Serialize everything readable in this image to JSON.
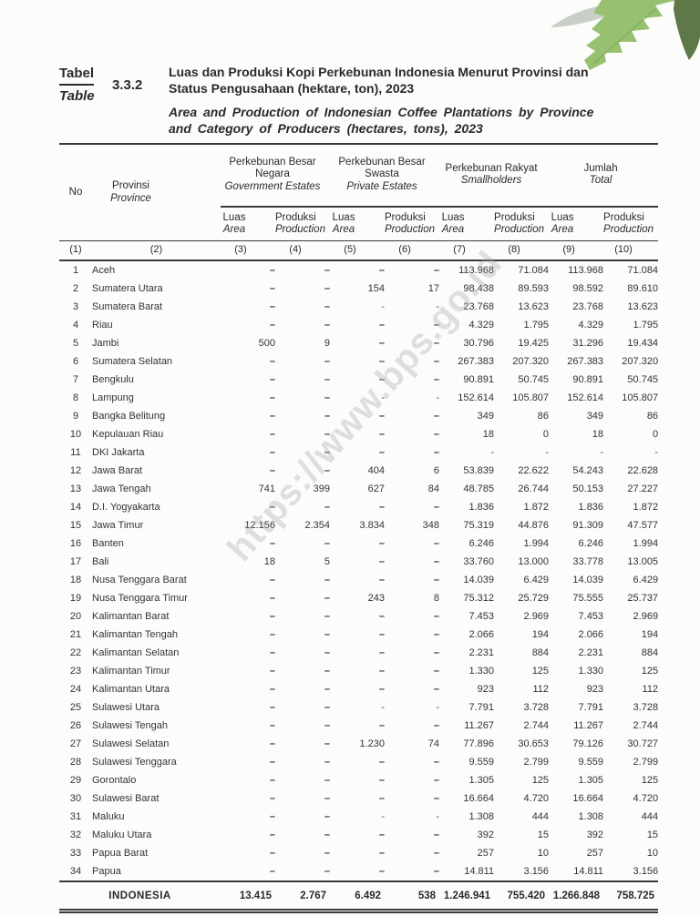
{
  "page": {
    "watermark_text": "https://www.bps.go.id"
  },
  "title_block": {
    "label_id": "Tabel",
    "label_en": "Table",
    "table_number": "3.3.2",
    "title_id_line1": "Luas dan Produksi Kopi Perkebunan Indonesia Menurut Provinsi dan",
    "title_id_line2": "Status Pengusahaan (hektare, ton), 2023",
    "title_en_line1": "Area and Production of Indonesian Coffee Plantations by Province",
    "title_en_line2": "and Category of Producers (hectares, tons), 2023"
  },
  "table": {
    "headers": {
      "no": "No",
      "province_id": "Provinsi",
      "province_en": "Province",
      "groups": [
        {
          "name_id": "Perkebunan Besar Negara",
          "name_en": "Government Estates"
        },
        {
          "name_id": "Perkebunan Besar Swasta",
          "name_en": "Private Estates"
        },
        {
          "name_id": "Perkebunan Rakyat",
          "name_en": "Smallholders"
        },
        {
          "name_id": "Jumlah",
          "name_en": "Total"
        }
      ],
      "sub_luas_id": "Luas",
      "sub_luas_en": "Area",
      "sub_prod_id": "Produksi",
      "sub_prod_en": "Production",
      "column_numbers": [
        "(1)",
        "(2)",
        "(3)",
        "(4)",
        "(5)",
        "(6)",
        "(7)",
        "(8)",
        "(9)",
        "(10)"
      ]
    },
    "rows": [
      {
        "no": "1",
        "province": "Aceh",
        "values": [
          "–",
          "–",
          "–",
          "–",
          "113.968",
          "71.084",
          "113.968",
          "71.084"
        ]
      },
      {
        "no": "2",
        "province": "Sumatera Utara",
        "values": [
          "–",
          "–",
          "154",
          "17",
          "98.438",
          "89.593",
          "98.592",
          "89.610"
        ]
      },
      {
        "no": "3",
        "province": "Sumatera Barat",
        "values": [
          "–",
          "–",
          "-",
          "-",
          "23.768",
          "13.623",
          "23.768",
          "13.623"
        ]
      },
      {
        "no": "4",
        "province": "Riau",
        "values": [
          "–",
          "–",
          "–",
          "–",
          "4.329",
          "1.795",
          "4.329",
          "1.795"
        ]
      },
      {
        "no": "5",
        "province": "Jambi",
        "values": [
          "500",
          "9",
          "–",
          "–",
          "30.796",
          "19.425",
          "31.296",
          "19.434"
        ]
      },
      {
        "no": "6",
        "province": "Sumatera Selatan",
        "values": [
          "–",
          "–",
          "–",
          "–",
          "267.383",
          "207.320",
          "267.383",
          "207.320"
        ]
      },
      {
        "no": "7",
        "province": "Bengkulu",
        "values": [
          "–",
          "–",
          "–",
          "–",
          "90.891",
          "50.745",
          "90.891",
          "50.745"
        ]
      },
      {
        "no": "8",
        "province": "Lampung",
        "values": [
          "–",
          "–",
          "-",
          "-",
          "152.614",
          "105.807",
          "152.614",
          "105.807"
        ]
      },
      {
        "no": "9",
        "province": "Bangka Belitung",
        "values": [
          "–",
          "–",
          "–",
          "–",
          "349",
          "86",
          "349",
          "86"
        ]
      },
      {
        "no": "10",
        "province": "Kepulauan Riau",
        "values": [
          "–",
          "–",
          "–",
          "–",
          "18",
          "0",
          "18",
          "0"
        ]
      },
      {
        "no": "11",
        "province": "DKI Jakarta",
        "values": [
          "–",
          "–",
          "–",
          "–",
          "-",
          "-",
          "-",
          "-"
        ]
      },
      {
        "no": "12",
        "province": "Jawa Barat",
        "values": [
          "–",
          "–",
          "404",
          "6",
          "53.839",
          "22.622",
          "54.243",
          "22.628"
        ]
      },
      {
        "no": "13",
        "province": "Jawa Tengah",
        "values": [
          "741",
          "399",
          "627",
          "84",
          "48.785",
          "26.744",
          "50.153",
          "27.227"
        ]
      },
      {
        "no": "14",
        "province": "D.I. Yogyakarta",
        "values": [
          "–",
          "–",
          "–",
          "–",
          "1.836",
          "1.872",
          "1.836",
          "1.872"
        ]
      },
      {
        "no": "15",
        "province": "Jawa Timur",
        "values": [
          "12.156",
          "2.354",
          "3.834",
          "348",
          "75.319",
          "44.876",
          "91.309",
          "47.577"
        ]
      },
      {
        "no": "16",
        "province": "Banten",
        "values": [
          "–",
          "–",
          "–",
          "–",
          "6.246",
          "1.994",
          "6.246",
          "1.994"
        ]
      },
      {
        "no": "17",
        "province": "Bali",
        "values": [
          "18",
          "5",
          "–",
          "–",
          "33.760",
          "13.000",
          "33.778",
          "13.005"
        ]
      },
      {
        "no": "18",
        "province": "Nusa Tenggara Barat",
        "values": [
          "–",
          "–",
          "–",
          "–",
          "14.039",
          "6.429",
          "14.039",
          "6.429"
        ]
      },
      {
        "no": "19",
        "province": "Nusa Tenggara Timur",
        "values": [
          "–",
          "–",
          "243",
          "8",
          "75.312",
          "25.729",
          "75.555",
          "25.737"
        ]
      },
      {
        "no": "20",
        "province": "Kalimantan Barat",
        "values": [
          "–",
          "–",
          "–",
          "–",
          "7.453",
          "2.969",
          "7.453",
          "2.969"
        ]
      },
      {
        "no": "21",
        "province": "Kalimantan Tengah",
        "values": [
          "–",
          "–",
          "–",
          "–",
          "2.066",
          "194",
          "2.066",
          "194"
        ]
      },
      {
        "no": "22",
        "province": "Kalimantan Selatan",
        "values": [
          "–",
          "–",
          "–",
          "–",
          "2.231",
          "884",
          "2.231",
          "884"
        ]
      },
      {
        "no": "23",
        "province": "Kalimantan Timur",
        "values": [
          "–",
          "–",
          "–",
          "–",
          "1.330",
          "125",
          "1.330",
          "125"
        ]
      },
      {
        "no": "24",
        "province": "Kalimantan Utara",
        "values": [
          "–",
          "–",
          "–",
          "–",
          "923",
          "112",
          "923",
          "112"
        ]
      },
      {
        "no": "25",
        "province": "Sulawesi Utara",
        "values": [
          "–",
          "–",
          "-",
          "-",
          "7.791",
          "3.728",
          "7.791",
          "3.728"
        ]
      },
      {
        "no": "26",
        "province": "Sulawesi Tengah",
        "values": [
          "–",
          "–",
          "–",
          "–",
          "11.267",
          "2.744",
          "11.267",
          "2.744"
        ]
      },
      {
        "no": "27",
        "province": "Sulawesi Selatan",
        "values": [
          "–",
          "–",
          "1.230",
          "74",
          "77.896",
          "30.653",
          "79.126",
          "30.727"
        ]
      },
      {
        "no": "28",
        "province": "Sulawesi Tenggara",
        "values": [
          "–",
          "–",
          "–",
          "–",
          "9.559",
          "2.799",
          "9.559",
          "2.799"
        ]
      },
      {
        "no": "29",
        "province": "Gorontalo",
        "values": [
          "–",
          "–",
          "–",
          "–",
          "1.305",
          "125",
          "1.305",
          "125"
        ]
      },
      {
        "no": "30",
        "province": "Sulawesi Barat",
        "values": [
          "–",
          "–",
          "–",
          "–",
          "16.664",
          "4.720",
          "16.664",
          "4.720"
        ]
      },
      {
        "no": "31",
        "province": "Maluku",
        "values": [
          "–",
          "–",
          "-",
          "-",
          "1.308",
          "444",
          "1.308",
          "444"
        ]
      },
      {
        "no": "32",
        "province": "Maluku Utara",
        "values": [
          "–",
          "–",
          "–",
          "–",
          "392",
          "15",
          "392",
          "15"
        ]
      },
      {
        "no": "33",
        "province": "Papua Barat",
        "values": [
          "–",
          "–",
          "–",
          "–",
          "257",
          "10",
          "257",
          "10"
        ]
      },
      {
        "no": "34",
        "province": "Papua",
        "values": [
          "–",
          "–",
          "–",
          "–",
          "14.811",
          "3.156",
          "14.811",
          "3.156"
        ]
      }
    ],
    "total": {
      "label": "INDONESIA",
      "values": [
        "13.415",
        "2.767",
        "6.492",
        "538",
        "1.246.941",
        "755.420",
        "1.266.848",
        "758.725"
      ]
    }
  },
  "decoration": {
    "leaf_light_color": "#97c171",
    "leaf_dark_color": "#5e7947",
    "leaf_gray_color": "#c9cfc6"
  }
}
